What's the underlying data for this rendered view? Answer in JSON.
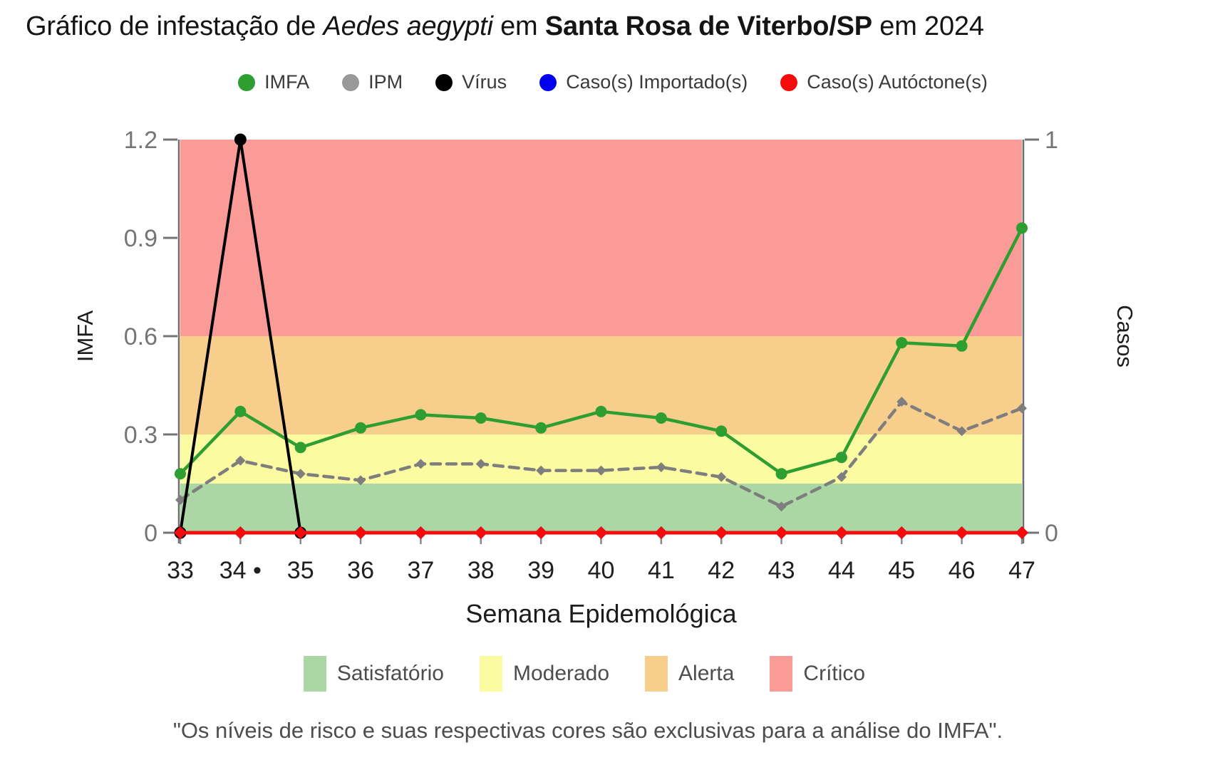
{
  "title": {
    "part1": "Gráfico de infestação de ",
    "species_italic": "Aedes aegypti",
    "part2": " em ",
    "city_bold": "Santa Rosa de Viterbo/SP",
    "part3": " em 2024"
  },
  "series_legend": [
    {
      "label": "IMFA",
      "color": "#2e9e31"
    },
    {
      "label": "IPM",
      "color": "#999999"
    },
    {
      "label": "Vírus",
      "color": "#000000"
    },
    {
      "label": "Caso(s) Importado(s)",
      "color": "#0000ee"
    },
    {
      "label": "Caso(s) Autóctone(s)",
      "color": "#f40b0b"
    }
  ],
  "chart_data": {
    "type": "line",
    "title": "Gráfico de infestação de Aedes aegypti em Santa Rosa de Viterbo/SP em 2024",
    "x_label": "Semana Epidemológica",
    "y_left_label": "IMFA",
    "y_right_label": "Casos",
    "x": [
      33,
      34,
      35,
      36,
      37,
      38,
      39,
      40,
      41,
      42,
      43,
      44,
      45,
      46,
      47
    ],
    "x_tick_labels": [
      "33",
      "34 •",
      "35",
      "36",
      "37",
      "38",
      "39",
      "40",
      "41",
      "42",
      "43",
      "44",
      "45",
      "46",
      "47"
    ],
    "y_left_range": [
      0,
      1.2
    ],
    "y_right_range": [
      0,
      1
    ],
    "y_left_ticks": [
      {
        "v": 0,
        "label": "0"
      },
      {
        "v": 0.3,
        "label": "0.3"
      },
      {
        "v": 0.6,
        "label": "0.6"
      },
      {
        "v": 0.9,
        "label": "0.9"
      },
      {
        "v": 1.2,
        "label": "1.2"
      }
    ],
    "y_right_ticks": [
      {
        "v": 0,
        "label": "0"
      },
      {
        "v": 1,
        "label": "1"
      }
    ],
    "bands": [
      {
        "label": "Satisfatório",
        "from": 0,
        "to": 0.15,
        "color": "#aad7a4"
      },
      {
        "label": "Moderado",
        "from": 0.15,
        "to": 0.3,
        "color": "#fbfba1"
      },
      {
        "label": "Alerta",
        "from": 0.3,
        "to": 0.6,
        "color": "#f8ce8d"
      },
      {
        "label": "Crítico",
        "from": 0.6,
        "to": 1.2,
        "color": "#fa9b98"
      }
    ],
    "series": [
      {
        "name": "IMFA",
        "axis": "left",
        "color": "#2e9e31",
        "line_style": "solid",
        "marker": "circle",
        "values": [
          0.18,
          0.37,
          0.26,
          0.32,
          0.36,
          0.35,
          0.32,
          0.37,
          0.35,
          0.31,
          0.18,
          0.23,
          0.58,
          0.57,
          0.93
        ]
      },
      {
        "name": "IPM",
        "axis": "left",
        "color": "#7e7e7e",
        "line_style": "dashed",
        "marker": "diamond",
        "values": [
          0.1,
          0.22,
          0.18,
          0.16,
          0.21,
          0.21,
          0.19,
          0.19,
          0.2,
          0.17,
          0.08,
          0.17,
          0.4,
          0.31,
          0.38
        ]
      },
      {
        "name": "Vírus",
        "axis": "right",
        "color": "#000000",
        "line_style": "solid",
        "marker": "circle",
        "values": [
          0,
          1,
          0,
          null,
          null,
          null,
          null,
          null,
          null,
          null,
          null,
          null,
          null,
          null,
          null
        ]
      },
      {
        "name": "Caso(s) Importado(s)",
        "axis": "right",
        "color": "#0000ee",
        "line_style": "solid",
        "marker": "diamond",
        "values": [
          0,
          0,
          0,
          0,
          0,
          0,
          0,
          0,
          0,
          0,
          0,
          0,
          0,
          0,
          0
        ]
      },
      {
        "name": "Caso(s) Autóctone(s)",
        "axis": "right",
        "color": "#f40b0b",
        "line_style": "solid",
        "marker": "diamond",
        "values": [
          0,
          0,
          0,
          0,
          0,
          0,
          0,
          0,
          0,
          0,
          0,
          0,
          0,
          0,
          0
        ]
      }
    ],
    "annotations": [
      "Black dot marker next to x tick label of week 34"
    ],
    "legend_position": "top",
    "grid": false
  },
  "risk_legend": [
    {
      "label": "Satisfatório",
      "color": "#aad7a4"
    },
    {
      "label": "Moderado",
      "color": "#fbfba1"
    },
    {
      "label": "Alerta",
      "color": "#f8ce8d"
    },
    {
      "label": "Crítico",
      "color": "#fa9b98"
    }
  ],
  "footnote": "\"Os níveis de risco e suas respectivas cores são exclusivas para a análise do IMFA\"."
}
